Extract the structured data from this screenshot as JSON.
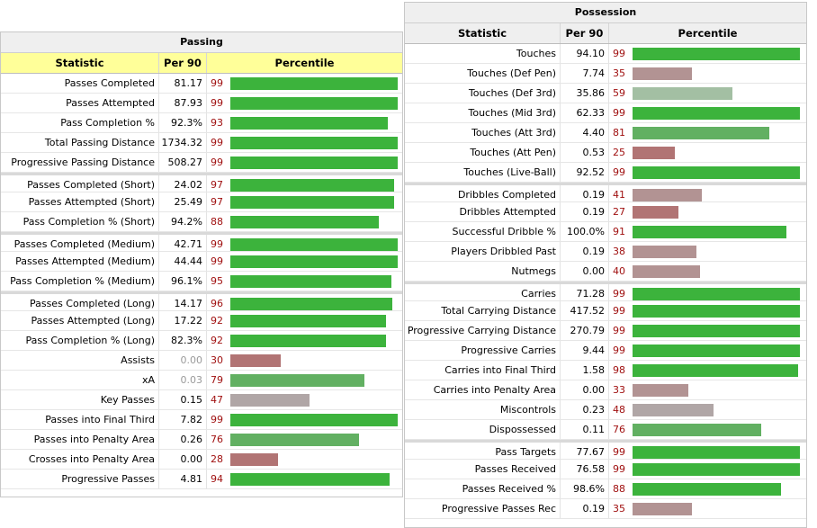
{
  "colors": {
    "high": "#3cb33c",
    "mid_high": "#62b062",
    "mid": "#a3bfa3",
    "neutral": "#b0a6a6",
    "low_mid": "#b29393",
    "low": "#b17474",
    "percentile_text": "#a01010",
    "header_yellow": "#ffff99",
    "title_bg": "#efefef"
  },
  "chart_data": [
    {
      "type": "bar",
      "title": "Passing",
      "columns": [
        "Statistic",
        "Per 90",
        "Percentile"
      ],
      "xlim": [
        0,
        100
      ],
      "groups": [
        [
          {
            "stat": "Passes Completed",
            "per90": "81.17",
            "pct": 99
          },
          {
            "stat": "Passes Attempted",
            "per90": "87.93",
            "pct": 99
          },
          {
            "stat": "Pass Completion %",
            "per90": "92.3%",
            "pct": 93
          },
          {
            "stat": "Total Passing Distance",
            "per90": "1734.32",
            "pct": 99
          },
          {
            "stat": "Progressive Passing Distance",
            "per90": "508.27",
            "pct": 99
          }
        ],
        [
          {
            "stat": "Passes Completed (Short)",
            "per90": "24.02",
            "pct": 97
          },
          {
            "stat": "Passes Attempted (Short)",
            "per90": "25.49",
            "pct": 97
          },
          {
            "stat": "Pass Completion % (Short)",
            "per90": "94.2%",
            "pct": 88
          }
        ],
        [
          {
            "stat": "Passes Completed (Medium)",
            "per90": "42.71",
            "pct": 99
          },
          {
            "stat": "Passes Attempted (Medium)",
            "per90": "44.44",
            "pct": 99
          },
          {
            "stat": "Pass Completion % (Medium)",
            "per90": "96.1%",
            "pct": 95
          }
        ],
        [
          {
            "stat": "Passes Completed (Long)",
            "per90": "14.17",
            "pct": 96
          },
          {
            "stat": "Passes Attempted (Long)",
            "per90": "17.22",
            "pct": 92
          },
          {
            "stat": "Pass Completion % (Long)",
            "per90": "82.3%",
            "pct": 92
          },
          {
            "stat": "Assists",
            "per90": "0.00",
            "pct": 30,
            "muted": true
          },
          {
            "stat": "xA",
            "per90": "0.03",
            "pct": 79,
            "muted": true
          },
          {
            "stat": "Key Passes",
            "per90": "0.15",
            "pct": 47
          },
          {
            "stat": "Passes into Final Third",
            "per90": "7.82",
            "pct": 99
          },
          {
            "stat": "Passes into Penalty Area",
            "per90": "0.26",
            "pct": 76
          },
          {
            "stat": "Crosses into Penalty Area",
            "per90": "0.00",
            "pct": 28
          },
          {
            "stat": "Progressive Passes",
            "per90": "4.81",
            "pct": 94
          }
        ]
      ]
    },
    {
      "type": "bar",
      "title": "Possession",
      "columns": [
        "Statistic",
        "Per 90",
        "Percentile"
      ],
      "xlim": [
        0,
        100
      ],
      "groups": [
        [
          {
            "stat": "Touches",
            "per90": "94.10",
            "pct": 99
          },
          {
            "stat": "Touches (Def Pen)",
            "per90": "7.74",
            "pct": 35
          },
          {
            "stat": "Touches (Def 3rd)",
            "per90": "35.86",
            "pct": 59
          },
          {
            "stat": "Touches (Mid 3rd)",
            "per90": "62.33",
            "pct": 99
          },
          {
            "stat": "Touches (Att 3rd)",
            "per90": "4.40",
            "pct": 81
          },
          {
            "stat": "Touches (Att Pen)",
            "per90": "0.53",
            "pct": 25
          },
          {
            "stat": "Touches (Live-Ball)",
            "per90": "92.52",
            "pct": 99
          }
        ],
        [
          {
            "stat": "Dribbles Completed",
            "per90": "0.19",
            "pct": 41
          },
          {
            "stat": "Dribbles Attempted",
            "per90": "0.19",
            "pct": 27
          },
          {
            "stat": "Successful Dribble %",
            "per90": "100.0%",
            "pct": 91
          },
          {
            "stat": "Players Dribbled Past",
            "per90": "0.19",
            "pct": 38
          },
          {
            "stat": "Nutmegs",
            "per90": "0.00",
            "pct": 40
          }
        ],
        [
          {
            "stat": "Carries",
            "per90": "71.28",
            "pct": 99
          },
          {
            "stat": "Total Carrying Distance",
            "per90": "417.52",
            "pct": 99
          },
          {
            "stat": "Progressive Carrying Distance",
            "per90": "270.79",
            "pct": 99
          },
          {
            "stat": "Progressive Carries",
            "per90": "9.44",
            "pct": 99
          },
          {
            "stat": "Carries into Final Third",
            "per90": "1.58",
            "pct": 98
          },
          {
            "stat": "Carries into Penalty Area",
            "per90": "0.00",
            "pct": 33
          },
          {
            "stat": "Miscontrols",
            "per90": "0.23",
            "pct": 48
          },
          {
            "stat": "Dispossessed",
            "per90": "0.11",
            "pct": 76
          }
        ],
        [
          {
            "stat": "Pass Targets",
            "per90": "77.67",
            "pct": 99
          },
          {
            "stat": "Passes Received",
            "per90": "76.58",
            "pct": 99
          },
          {
            "stat": "Passes Received %",
            "per90": "98.6%",
            "pct": 88
          },
          {
            "stat": "Progressive Passes Rec",
            "per90": "0.19",
            "pct": 35
          }
        ]
      ]
    }
  ]
}
